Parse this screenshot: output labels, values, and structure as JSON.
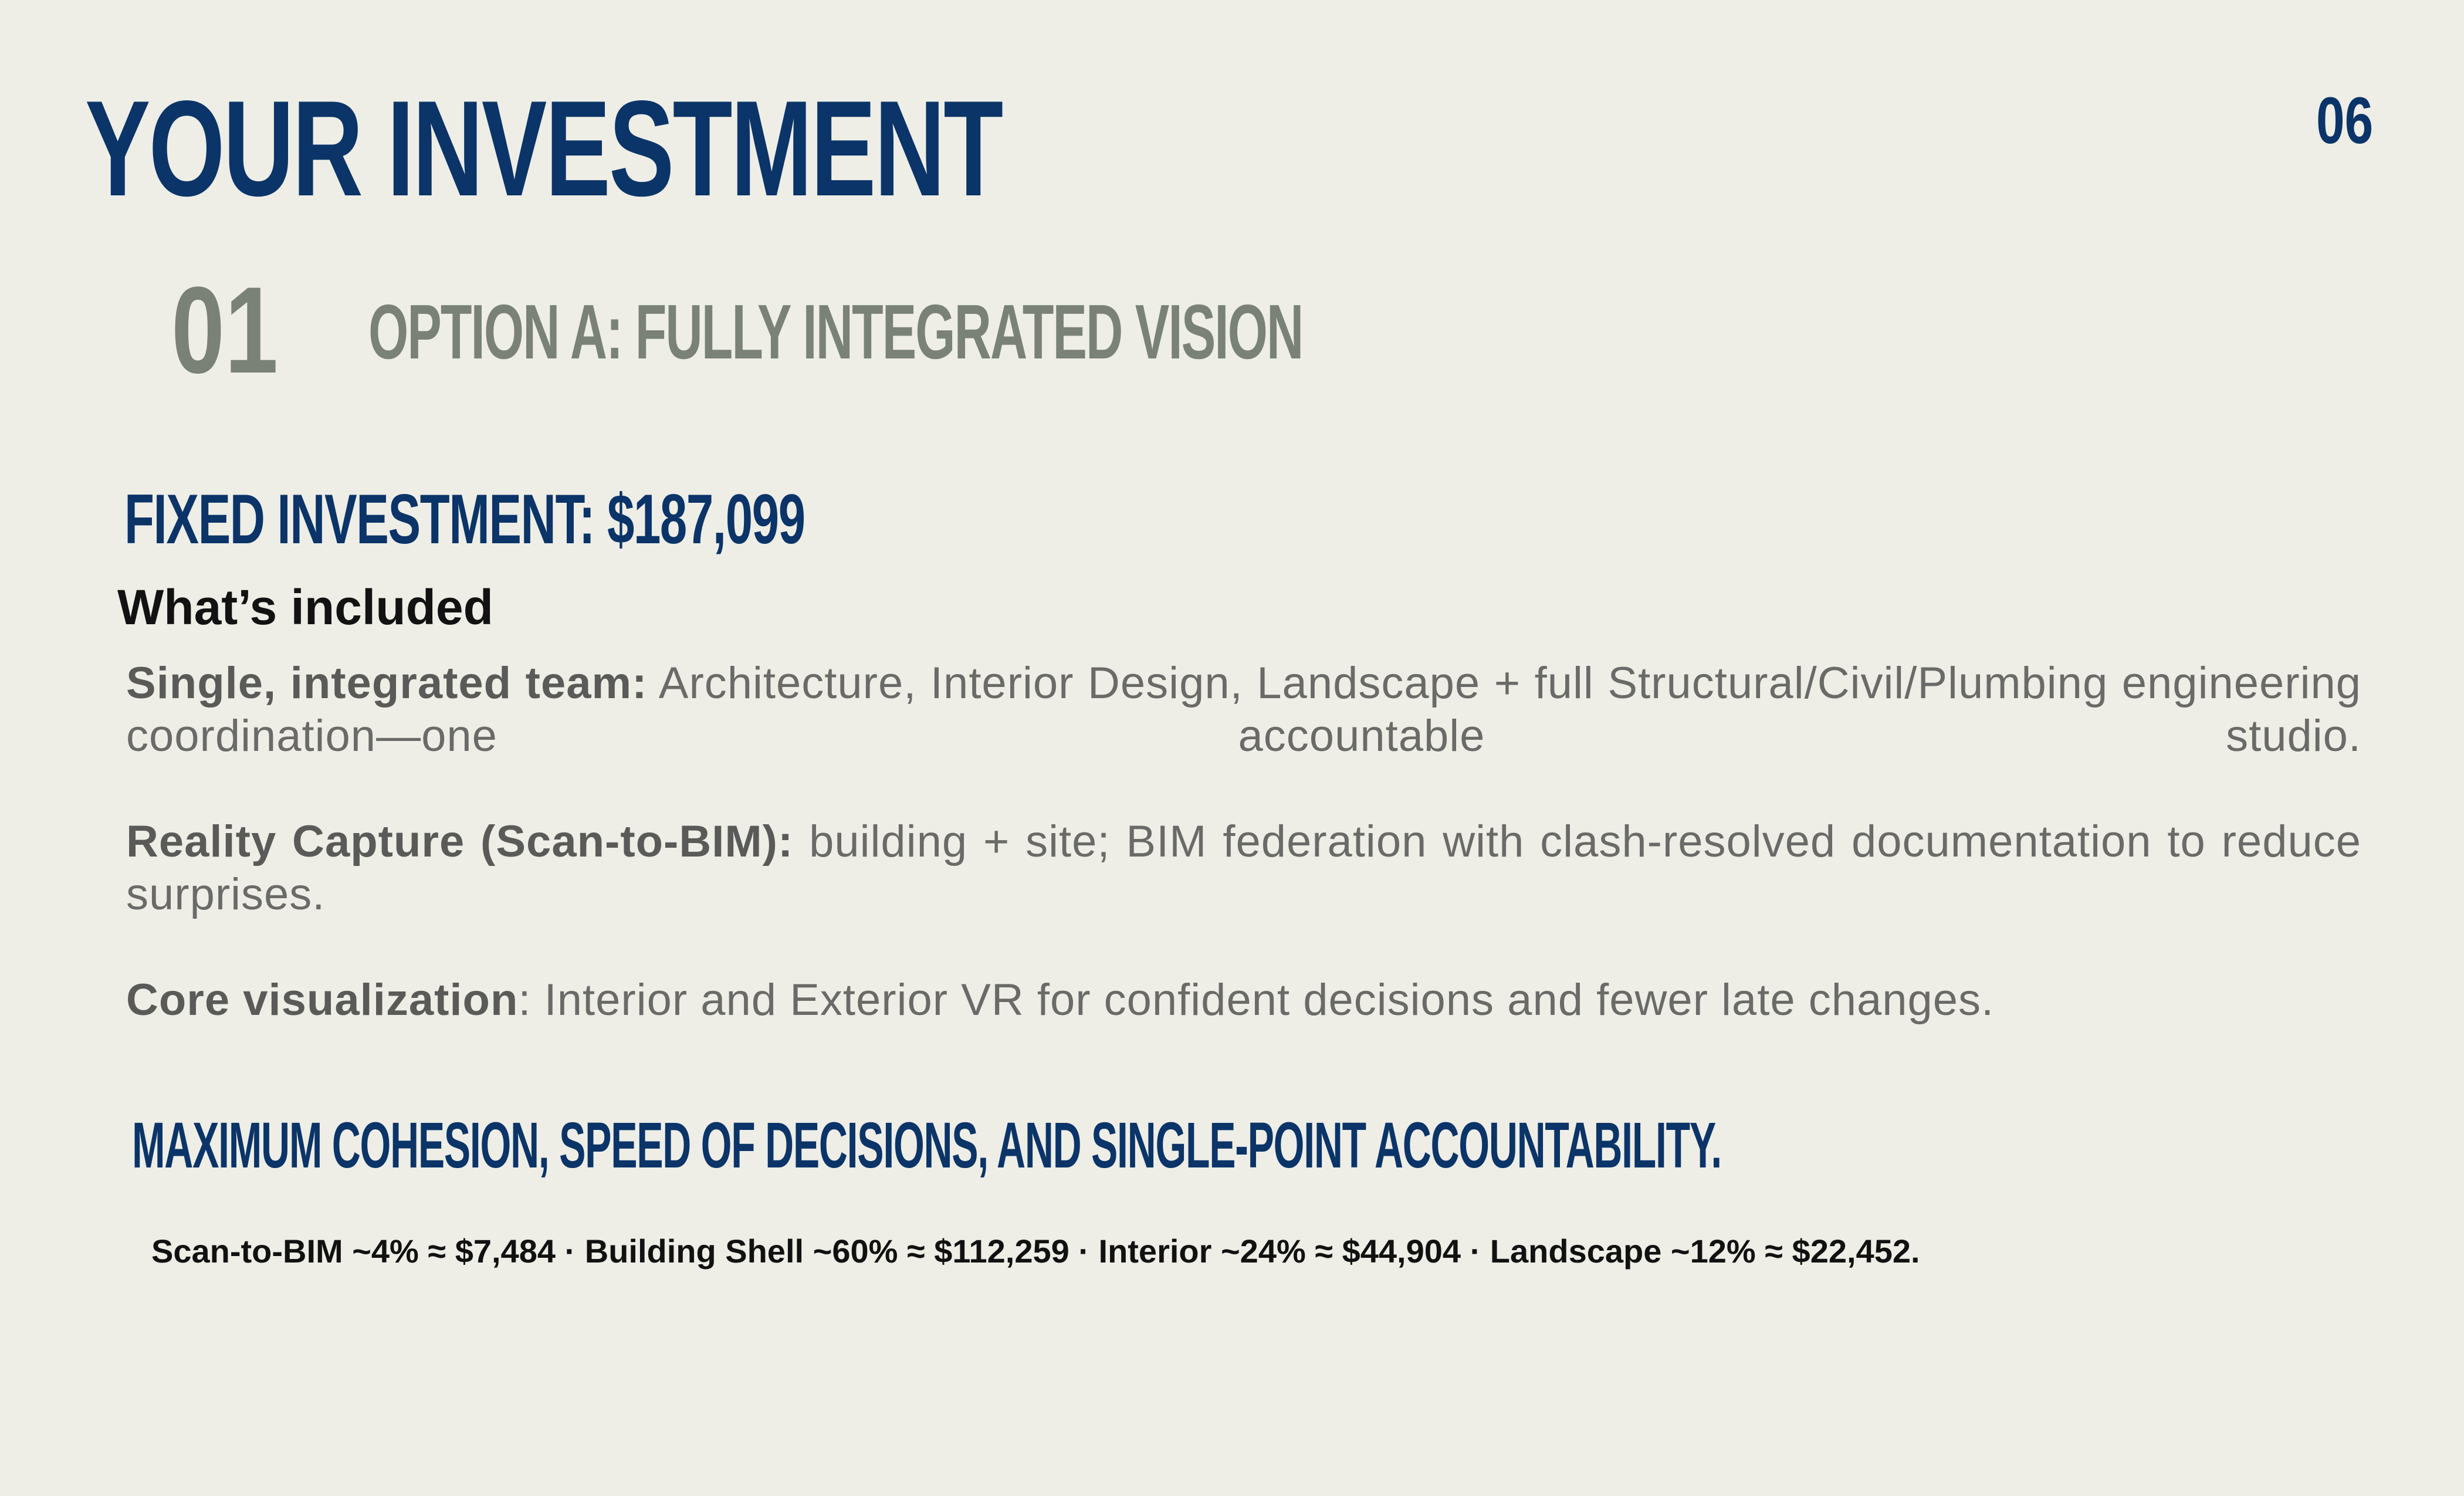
{
  "slide": {
    "title": "YOUR INVESTMENT",
    "page_number": "06",
    "section_number": "01",
    "option_title": "OPTION A: FULLY INTEGRATED VISION",
    "fixed_investment": "FIXED INVESTMENT: $187,099",
    "included_heading": "What’s included",
    "items": [
      {
        "label": "Single, integrated team:",
        "text": " Architecture, Interior Design, Landscape + full Structural/Civil/Plumbing engineering coordination—one accountable studio."
      },
      {
        "label": "Reality Capture (Scan-to-BIM):",
        "text": " building + site; BIM federation with clash-resolved documentation to reduce surprises."
      },
      {
        "label": "Core visualization",
        "text": ": Interior and Exterior VR for confident decisions and fewer late changes."
      }
    ],
    "tagline": "MAXIMUM COHESION, SPEED OF DECISIONS, AND SINGLE-POINT ACCOUNTABILITY.",
    "breakdown": "Scan-to-BIM ~4% ≈ $7,484 · Building Shell ~60% ≈ $112,259 · Interior ~24% ≈ $44,904 · Landscape ~12% ≈ $22,452."
  },
  "colors": {
    "background": "#eeeee7",
    "navy": "#0b3468",
    "sage": "#7a8278",
    "body_text": "#6a6a68"
  }
}
